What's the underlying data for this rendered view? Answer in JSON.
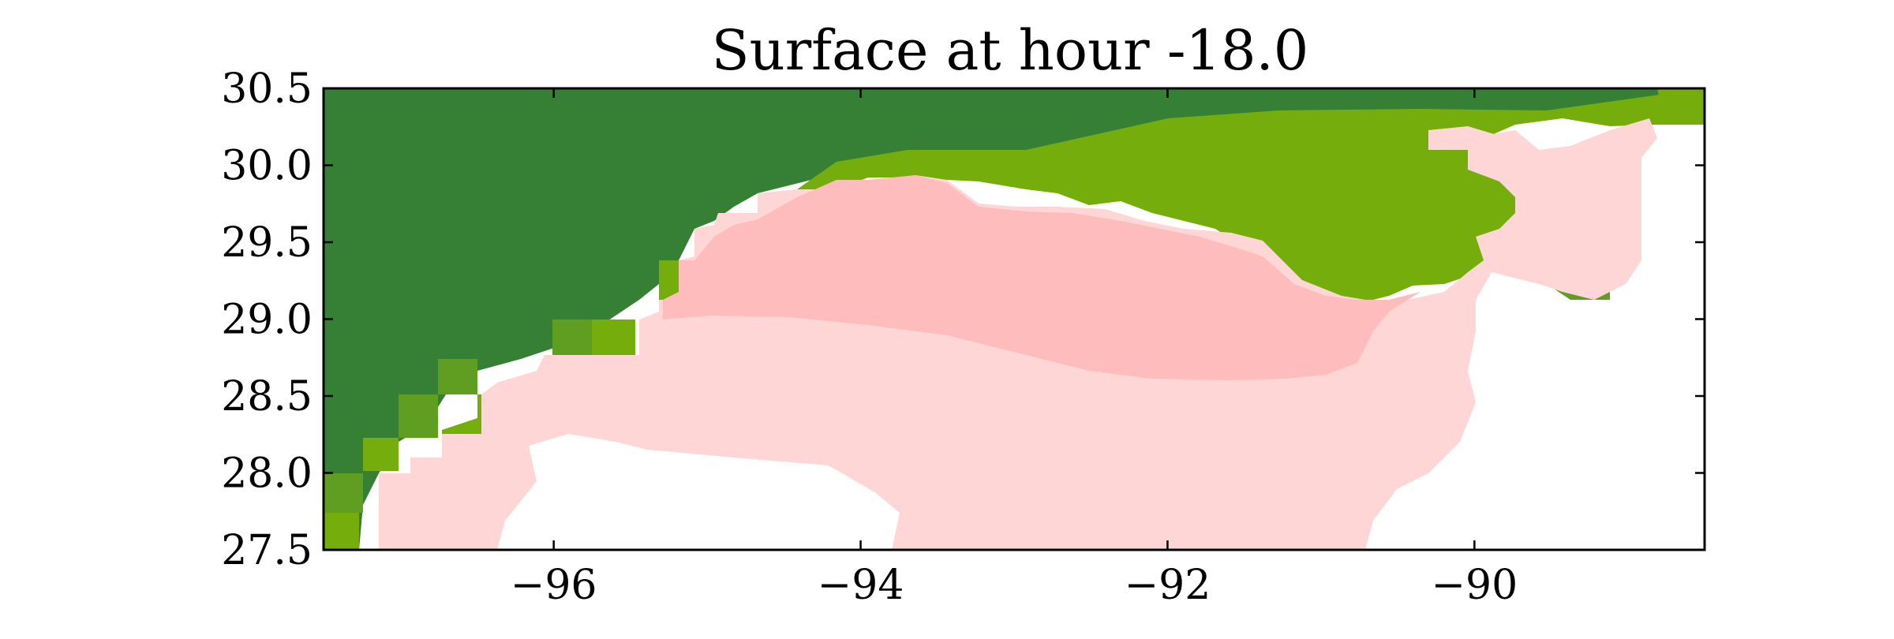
{
  "title": "Surface at hour -18.0",
  "colors": {
    "land_dark": "#358034",
    "land_mid": "#5f9e21",
    "land_light": "#74ad0c",
    "water_pale": "#fed6d6",
    "water_mid": "#febcbc",
    "background": "#ffffff",
    "axis": "#000000"
  },
  "map": {
    "lon_range": [
      -97.5,
      -88.5
    ],
    "lat_range": [
      27.5,
      30.5
    ],
    "x_ticks": [
      -96,
      -94,
      -92,
      -90
    ],
    "y_ticks": [
      27.5,
      28.0,
      28.5,
      29.0,
      29.5,
      30.0,
      30.5
    ],
    "x_tick_labels": [
      "−96",
      "−94",
      "−92",
      "−90"
    ],
    "y_tick_labels": [
      "27.5",
      "28.0",
      "28.5",
      "29.0",
      "29.5",
      "30.0",
      "30.5"
    ]
  }
}
